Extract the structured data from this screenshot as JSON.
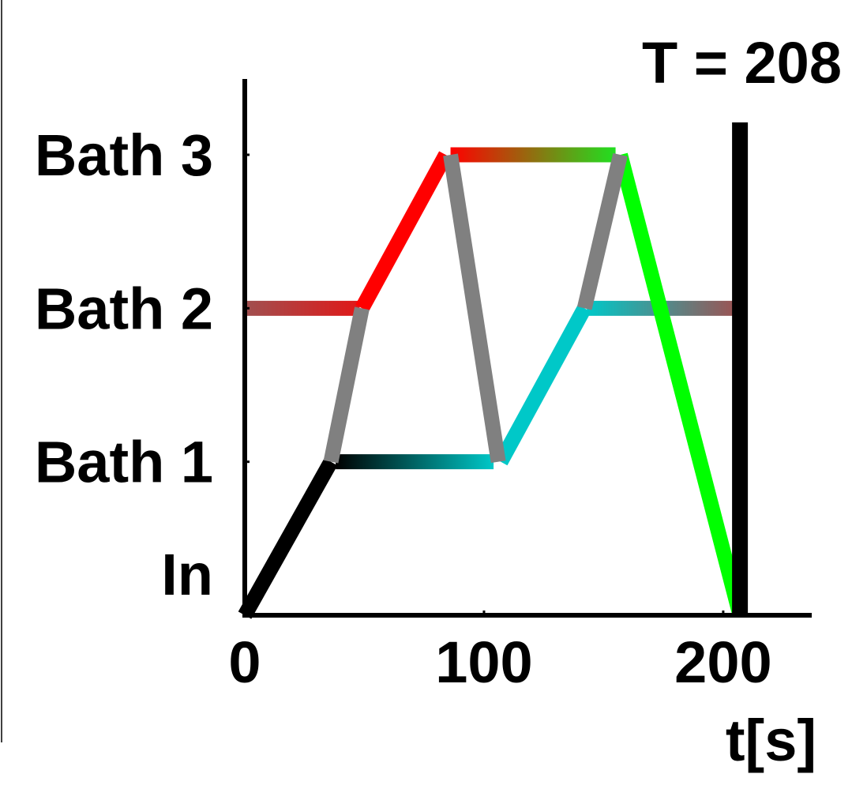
{
  "chart_data": {
    "type": "line",
    "title": "T = 208",
    "xlabel": "t[s]",
    "ylabel": "",
    "xlim": [
      0,
      237
    ],
    "ylim": [
      0,
      3.4
    ],
    "x_ticks": [
      {
        "value": 0,
        "label": "0"
      },
      {
        "value": 100,
        "label": "100"
      },
      {
        "value": 200,
        "label": "200"
      }
    ],
    "y_ticks": [
      {
        "value": 0,
        "label": "In"
      },
      {
        "value": 1,
        "label": "Bath 1"
      },
      {
        "value": 2,
        "label": "Bath 2"
      },
      {
        "value": 3,
        "label": "Bath 3"
      }
    ],
    "marker_line": {
      "x": 207
    },
    "grid": false,
    "segments": [
      {
        "x": [
          0,
          36
        ],
        "y": [
          0,
          1
        ],
        "colors": [
          "#000000",
          "#000000"
        ]
      },
      {
        "x": [
          38,
          104
        ],
        "y": [
          1,
          1
        ],
        "colors": [
          "#000000",
          "#00c8c8"
        ]
      },
      {
        "x": [
          0,
          48
        ],
        "y": [
          2,
          2
        ],
        "colors": [
          "#a05050",
          "#e01818"
        ]
      },
      {
        "x": [
          49,
          84
        ],
        "y": [
          2,
          3
        ],
        "colors": [
          "#ff0000",
          "#ff0000"
        ]
      },
      {
        "x": [
          86,
          155
        ],
        "y": [
          3,
          3
        ],
        "colors": [
          "#ff0000",
          "#20e020"
        ]
      },
      {
        "x": [
          107,
          142
        ],
        "y": [
          1,
          2
        ],
        "colors": [
          "#00c8c8",
          "#00c8c8"
        ]
      },
      {
        "x": [
          143,
          207
        ],
        "y": [
          2,
          2
        ],
        "colors": [
          "#00c8c8",
          "#a05050"
        ]
      },
      {
        "x": [
          157,
          207
        ],
        "y": [
          3,
          0
        ],
        "colors": [
          "#00ff00",
          "#00ff00"
        ]
      },
      {
        "x": [
          36,
          49
        ],
        "y": [
          1,
          2
        ],
        "colors": [
          "#808080",
          "#808080"
        ]
      },
      {
        "x": [
          86,
          106
        ],
        "y": [
          3,
          1
        ],
        "colors": [
          "#808080",
          "#808080"
        ]
      },
      {
        "x": [
          142,
          157
        ],
        "y": [
          2,
          3
        ],
        "colors": [
          "#808080",
          "#808080"
        ]
      }
    ]
  }
}
